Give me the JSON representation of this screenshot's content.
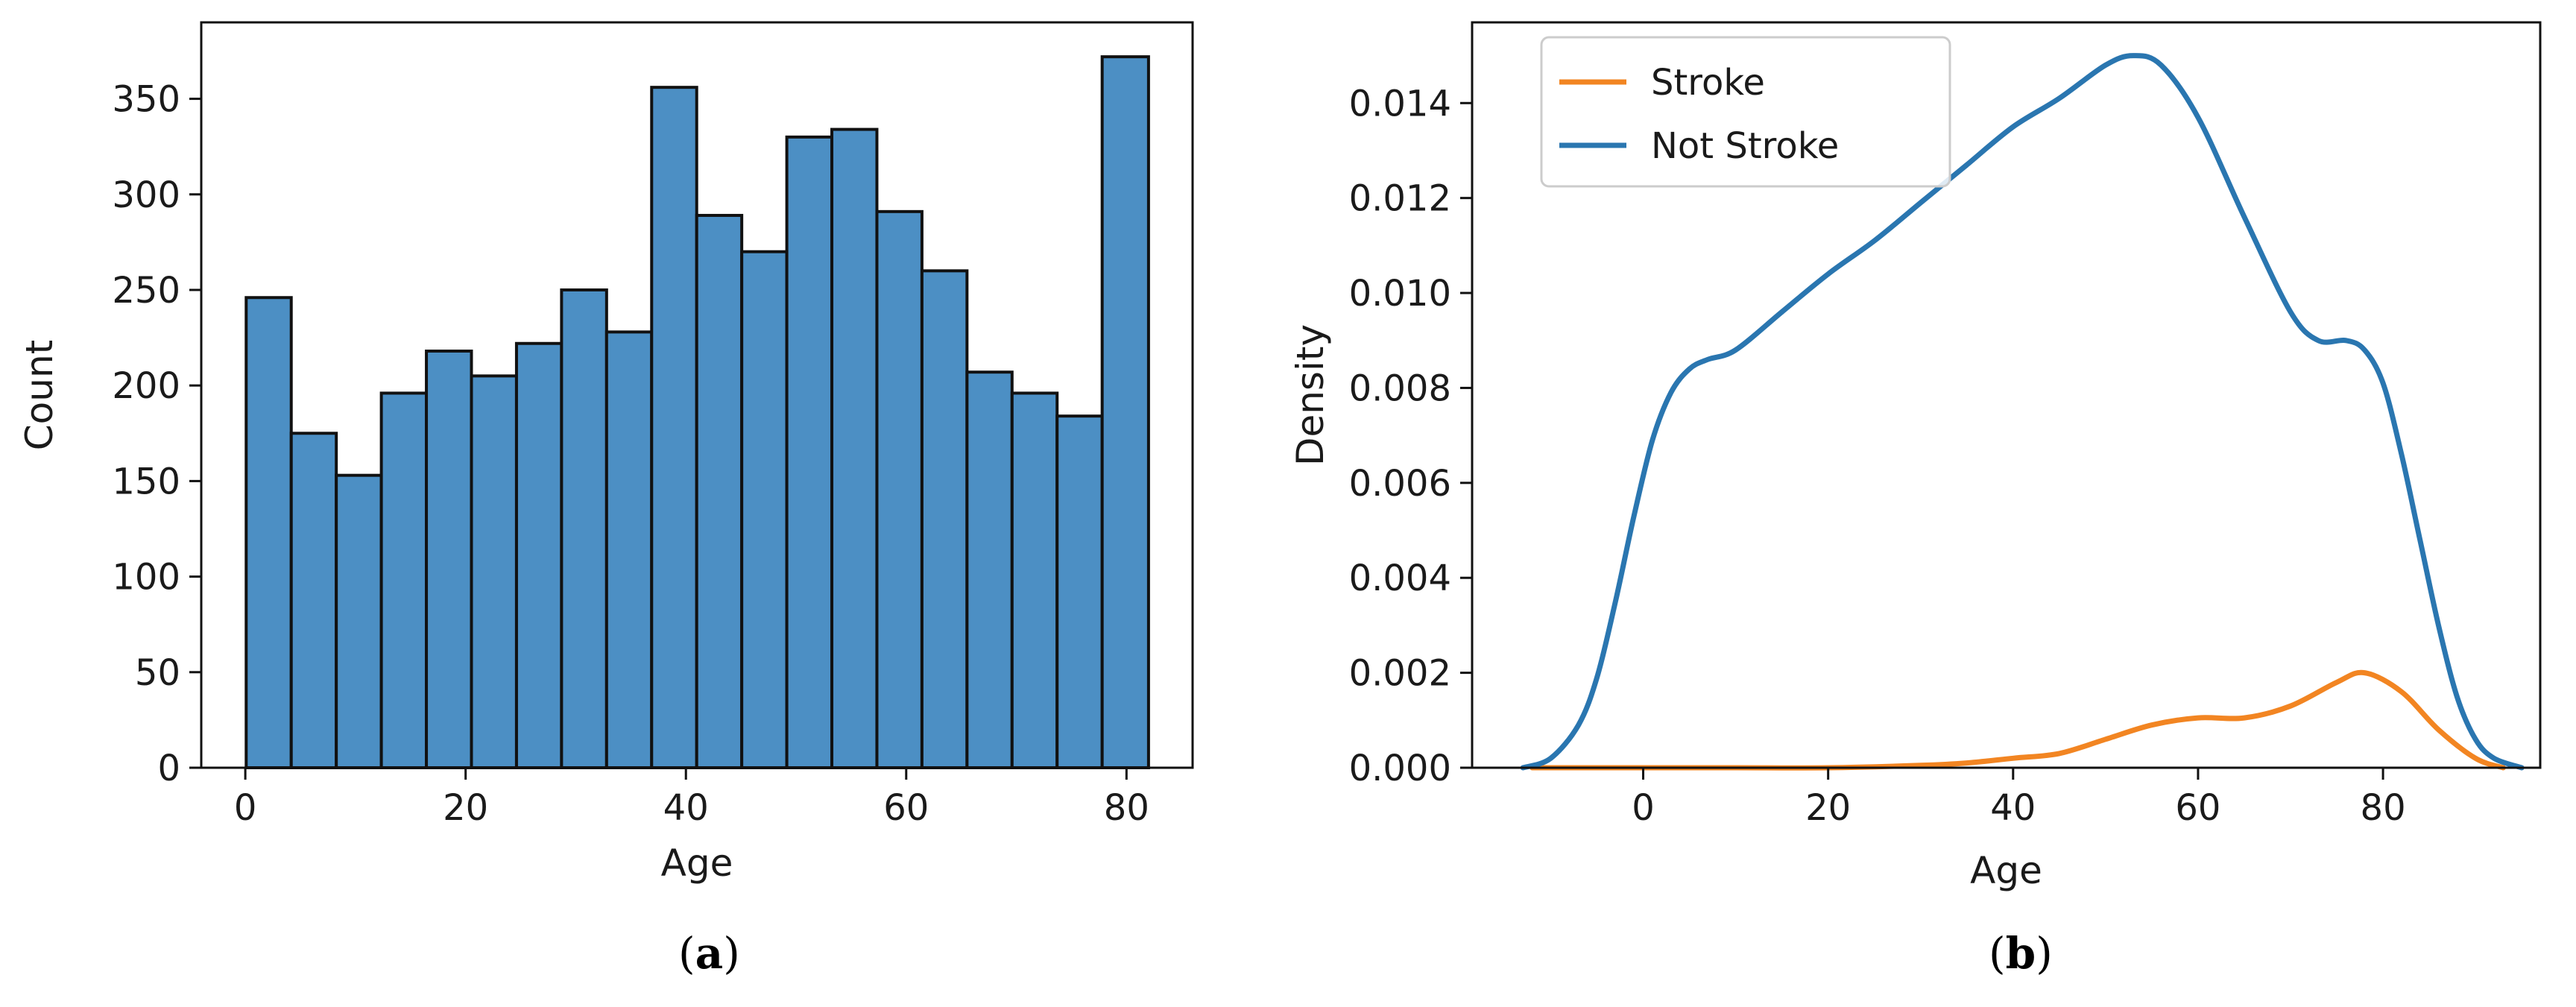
{
  "captions": {
    "a": "a",
    "b": "b"
  },
  "colors": {
    "hist": "#4c8fc4",
    "stroke": "#f28522",
    "not_stroke": "#2a76b0"
  },
  "chart_data": [
    {
      "id": "a",
      "type": "bar",
      "title": "",
      "xlabel": "Age",
      "ylabel": "Count",
      "bin_edges": [
        0.08,
        4.17,
        8.26,
        12.35,
        16.44,
        20.53,
        24.62,
        28.71,
        32.8,
        36.89,
        40.98,
        45.07,
        49.16,
        53.25,
        57.34,
        61.43,
        65.52,
        69.61,
        73.7,
        77.79,
        82.0
      ],
      "values": [
        246,
        175,
        153,
        196,
        218,
        205,
        222,
        250,
        228,
        356,
        289,
        270,
        330,
        334,
        291,
        260,
        207,
        196,
        184,
        372
      ],
      "xlim": [
        -4.0,
        86.0
      ],
      "ylim": [
        0,
        390
      ],
      "xticks": [
        0,
        20,
        40,
        60,
        80
      ],
      "xtick_labels": [
        "0",
        "20",
        "40",
        "60",
        "80"
      ],
      "yticks": [
        0,
        50,
        100,
        150,
        200,
        250,
        300,
        350
      ],
      "ytick_labels": [
        "0",
        "50",
        "100",
        "150",
        "200",
        "250",
        "300",
        "350"
      ]
    },
    {
      "id": "b",
      "type": "line",
      "title": "",
      "xlabel": "Age",
      "ylabel": "Density",
      "xlim": [
        -18.5,
        97.0
      ],
      "ylim": [
        0,
        0.0157
      ],
      "xticks": [
        0,
        20,
        40,
        60,
        80
      ],
      "xtick_labels": [
        "0",
        "20",
        "40",
        "60",
        "80"
      ],
      "yticks": [
        0,
        0.002,
        0.004,
        0.006,
        0.008,
        0.01,
        0.012,
        0.014
      ],
      "ytick_labels": [
        "0.000",
        "0.002",
        "0.004",
        "0.006",
        "0.008",
        "0.010",
        "0.012",
        "0.014"
      ],
      "legend_position": "top-left",
      "series": [
        {
          "name": "Stroke",
          "x": [
            -12,
            -5,
            0,
            10,
            20,
            30,
            35,
            40,
            45,
            50,
            55,
            60,
            65,
            70,
            75,
            78,
            82,
            86,
            90,
            93
          ],
          "y": [
            0,
            0,
            0,
            0,
            0,
            5e-05,
            0.0001,
            0.0002,
            0.0003,
            0.0006,
            0.0009,
            0.00105,
            0.00105,
            0.0013,
            0.0018,
            0.002,
            0.0016,
            0.0008,
            0.0002,
            0
          ]
        },
        {
          "name": "Not Stroke",
          "x": [
            -13,
            -10,
            -7,
            -5,
            -3,
            -1,
            1,
            3,
            5,
            7,
            10,
            15,
            20,
            25,
            30,
            35,
            40,
            45,
            50,
            53,
            56,
            60,
            65,
            70,
            73,
            76,
            78,
            80,
            82,
            84,
            86,
            88,
            90,
            92,
            95
          ],
          "y": [
            0,
            0.0002,
            0.0009,
            0.0019,
            0.0035,
            0.0053,
            0.0069,
            0.0079,
            0.0084,
            0.0086,
            0.0088,
            0.0096,
            0.0104,
            0.0111,
            0.0119,
            0.0127,
            0.0135,
            0.0141,
            0.0148,
            0.015,
            0.0148,
            0.0137,
            0.0116,
            0.0096,
            0.009,
            0.009,
            0.0088,
            0.0081,
            0.0066,
            0.0048,
            0.003,
            0.0015,
            0.0006,
            0.0002,
            0
          ]
        }
      ]
    }
  ]
}
